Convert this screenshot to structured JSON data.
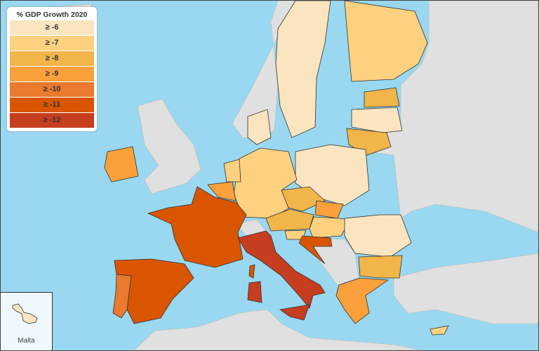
{
  "legend": {
    "title": "% GDP Growth 2020",
    "items": [
      {
        "label": "≥ -6",
        "color": "#fbe5c0"
      },
      {
        "label": "≥ -7",
        "color": "#fdd17f"
      },
      {
        "label": "≥ -8",
        "color": "#f2b54a"
      },
      {
        "label": "≥ -9",
        "color": "#fba13c"
      },
      {
        "label": "≥ -10",
        "color": "#e97a2e"
      },
      {
        "label": "≥ -11",
        "color": "#d95500"
      },
      {
        "label": "≥ -12",
        "color": "#c73d1f"
      }
    ]
  },
  "inset": {
    "label": "Malta",
    "color": "#fbe5c0"
  },
  "colors": {
    "sea": "#99d8f0",
    "non_eu_land": "#e0e0e0"
  }
}
